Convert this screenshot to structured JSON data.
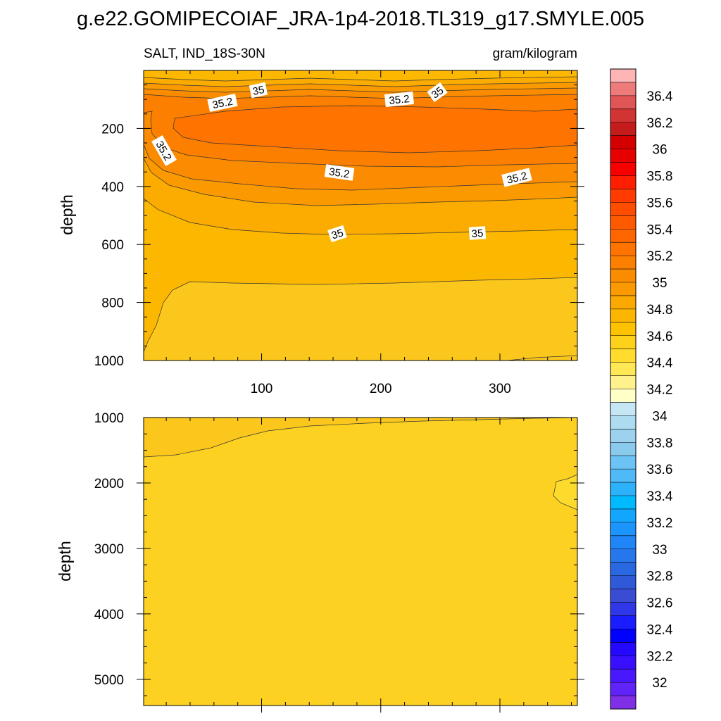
{
  "title": "g.e22.GOMIPECOIAF_JRA-1p4-2018.TL319_g17.SMYLE.005",
  "chart_data": {
    "type": "contour",
    "left_label": "SALT, IND_18S-30N",
    "right_label": "gram/kilogram",
    "ylabel": "depth",
    "x_range": [
      1,
      365
    ],
    "x_ticks": [
      100,
      200,
      300
    ],
    "top_panel": {
      "ylim": [
        0,
        1000
      ],
      "y_ticks": [
        200,
        400,
        600,
        800,
        1000
      ],
      "reversed": true,
      "contour_labels": [
        "35",
        "35.2",
        "35.2",
        "35",
        "35.2",
        "35.2",
        "35.2",
        "35",
        "35"
      ]
    },
    "bottom_panel": {
      "ylim": [
        1000,
        5400
      ],
      "y_ticks": [
        1000,
        2000,
        3000,
        4000,
        5000
      ],
      "reversed": true
    },
    "colorbar": {
      "levels": [
        36.6,
        36.5,
        36.4,
        36.3,
        36.2,
        36.1,
        36.0,
        35.9,
        35.8,
        35.7,
        35.6,
        35.5,
        35.4,
        35.3,
        35.2,
        35.1,
        35.0,
        34.9,
        34.8,
        34.7,
        34.6,
        34.5,
        34.4,
        34.3,
        34.2,
        34.1,
        34.0,
        33.9,
        33.8,
        33.7,
        33.6,
        33.5,
        33.4,
        33.3,
        33.2,
        33.1,
        33.0,
        32.9,
        32.8,
        32.7,
        32.6,
        32.5,
        32.4,
        32.3,
        32.2,
        32.1,
        32.0,
        31.9
      ],
      "tick_labels": [
        "36.4",
        "36.2",
        "36",
        "35.8",
        "35.6",
        "35.4",
        "35.2",
        "35",
        "34.8",
        "34.6",
        "34.4",
        "34.2",
        "34",
        "33.8",
        "33.6",
        "33.4",
        "33.2",
        "33",
        "32.8",
        "32.6",
        "32.4",
        "32.2",
        "32"
      ],
      "colors": [
        "#fdb5b5",
        "#ee7a7a",
        "#e05555",
        "#d23434",
        "#c41b1b",
        "#d40000",
        "#e60000",
        "#f80000",
        "#ff1e00",
        "#ff3b00",
        "#ff4d00",
        "#ff5a00",
        "#ff6600",
        "#ff7300",
        "#fd7f00",
        "#fb8c00",
        "#fa9a00",
        "#fba800",
        "#fcb500",
        "#fdc300",
        "#fed11b",
        "#ffdc2e",
        "#ffe856",
        "#fff28c",
        "#ffffc8",
        "#c4e6f5",
        "#addbf0",
        "#9dd2ee",
        "#8acaed",
        "#6bc4f5",
        "#4fbaf7",
        "#2bb2fa",
        "#00baff",
        "#12a6ff",
        "#1d95ff",
        "#2085f6",
        "#2676ec",
        "#2a68e2",
        "#3059d8",
        "#3a4cd4",
        "#2f37e8",
        "#1a1dff",
        "#0000ff",
        "#2408ff",
        "#3810ff",
        "#4a18ff",
        "#6024f8",
        "#7f2fe6"
      ]
    }
  }
}
